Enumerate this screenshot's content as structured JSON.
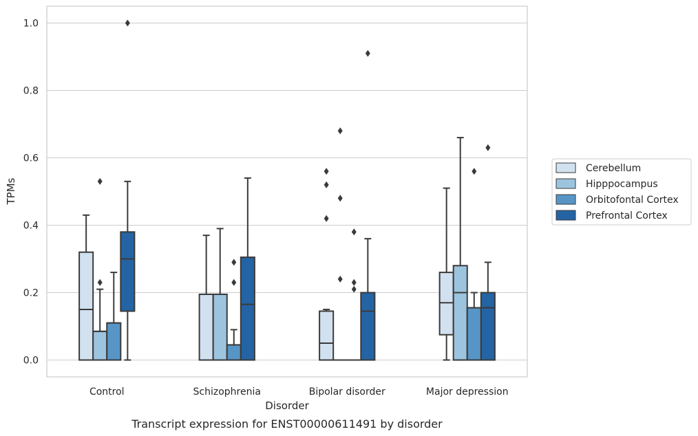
{
  "chart_data": {
    "type": "box",
    "caption": "Transcript expression for ENST00000611491 by disorder",
    "xlabel": "Disorder",
    "ylabel": "TPMs",
    "ylim": [
      -0.05,
      1.05
    ],
    "yticks": [
      "0.0",
      "0.2",
      "0.4",
      "0.6",
      "0.8",
      "1.0"
    ],
    "grid": "horizontal",
    "legend_position": "right",
    "categories": [
      "Control",
      "Schizophrenia",
      "Bipolar disorder",
      "Major depression"
    ],
    "series": [
      {
        "name": "Cerebellum",
        "color": "#d2e1f0",
        "boxes": [
          {
            "whisker_low": 0.0,
            "q1": 0.0,
            "median": 0.15,
            "q3": 0.32,
            "whisker_high": 0.43,
            "outliers": []
          },
          {
            "whisker_low": 0.0,
            "q1": 0.0,
            "median": 0.195,
            "q3": 0.195,
            "whisker_high": 0.37,
            "outliers": []
          },
          {
            "whisker_low": 0.0,
            "q1": 0.0,
            "median": 0.05,
            "q3": 0.145,
            "whisker_high": 0.15,
            "outliers": [
              0.42,
              0.52,
              0.56
            ]
          },
          {
            "whisker_low": 0.0,
            "q1": 0.075,
            "median": 0.17,
            "q3": 0.26,
            "whisker_high": 0.51,
            "outliers": []
          }
        ]
      },
      {
        "name": "Hipppocampus",
        "color": "#9cc4df",
        "boxes": [
          {
            "whisker_low": 0.0,
            "q1": 0.0,
            "median": 0.085,
            "q3": 0.085,
            "whisker_high": 0.21,
            "outliers": [
              0.23,
              0.53
            ]
          },
          {
            "whisker_low": 0.0,
            "q1": 0.0,
            "median": 0.195,
            "q3": 0.195,
            "whisker_high": 0.39,
            "outliers": []
          },
          {
            "whisker_low": 0.0,
            "q1": 0.0,
            "median": 0.0,
            "q3": 0.0,
            "whisker_high": 0.0,
            "outliers": [
              0.24,
              0.48,
              0.68
            ]
          },
          {
            "whisker_low": 0.0,
            "q1": 0.0,
            "median": 0.2,
            "q3": 0.28,
            "whisker_high": 0.66,
            "outliers": []
          }
        ]
      },
      {
        "name": "Orbitofontal Cortex",
        "color": "#5795c6",
        "boxes": [
          {
            "whisker_low": 0.0,
            "q1": 0.0,
            "median": 0.11,
            "q3": 0.11,
            "whisker_high": 0.26,
            "outliers": []
          },
          {
            "whisker_low": 0.0,
            "q1": 0.0,
            "median": 0.045,
            "q3": 0.045,
            "whisker_high": 0.09,
            "outliers": [
              0.23,
              0.29
            ]
          },
          {
            "whisker_low": 0.0,
            "q1": 0.0,
            "median": 0.0,
            "q3": 0.0,
            "whisker_high": 0.0,
            "outliers": [
              0.21,
              0.23,
              0.38
            ]
          },
          {
            "whisker_low": 0.0,
            "q1": 0.0,
            "median": 0.155,
            "q3": 0.155,
            "whisker_high": 0.2,
            "outliers": [
              0.56
            ]
          }
        ]
      },
      {
        "name": "Prefrontal Cortex",
        "color": "#2464a4",
        "boxes": [
          {
            "whisker_low": 0.0,
            "q1": 0.145,
            "median": 0.3,
            "q3": 0.38,
            "whisker_high": 0.53,
            "outliers": [
              1.0
            ]
          },
          {
            "whisker_low": 0.0,
            "q1": 0.0,
            "median": 0.165,
            "q3": 0.305,
            "whisker_high": 0.54,
            "outliers": []
          },
          {
            "whisker_low": 0.0,
            "q1": 0.0,
            "median": 0.145,
            "q3": 0.2,
            "whisker_high": 0.36,
            "outliers": [
              0.91
            ]
          },
          {
            "whisker_low": 0.0,
            "q1": 0.0,
            "median": 0.155,
            "q3": 0.2,
            "whisker_high": 0.29,
            "outliers": [
              0.63
            ]
          }
        ]
      }
    ]
  }
}
